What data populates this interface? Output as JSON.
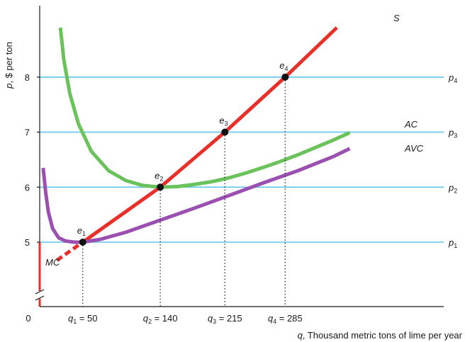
{
  "chart_data": {
    "type": "line",
    "xlabel_var": "q",
    "xlabel_rest": ", Thousand metric tons of lime per year",
    "ylabel_var": "p",
    "ylabel_rest": ", $ per ton",
    "origin_label": "0",
    "xlim": [
      0,
      390
    ],
    "ylim": [
      3.9,
      9.3
    ],
    "y_ticks": [
      5,
      6,
      7,
      8
    ],
    "axis_break": true,
    "price_lines": [
      {
        "y": 5,
        "label": "p",
        "sub": "1"
      },
      {
        "y": 6,
        "label": "p",
        "sub": "2"
      },
      {
        "y": 7,
        "label": "p",
        "sub": "3"
      },
      {
        "y": 8,
        "label": "p",
        "sub": "4"
      }
    ],
    "equilibria": [
      {
        "name": "e",
        "sub": "1",
        "x": 50,
        "y": 5,
        "q_label": "q",
        "q_sub": "1",
        "q_value": " = 50"
      },
      {
        "name": "e",
        "sub": "2",
        "x": 140,
        "y": 6,
        "q_label": "q",
        "q_sub": "2",
        "q_value": " = 140"
      },
      {
        "name": "e",
        "sub": "3",
        "x": 215,
        "y": 7,
        "q_label": "q",
        "q_sub": "3",
        "q_value": " = 215"
      },
      {
        "name": "e",
        "sub": "4",
        "x": 285,
        "y": 8,
        "q_label": "q",
        "q_sub": "4",
        "q_value": " = 285"
      }
    ],
    "series": [
      {
        "name": "S",
        "color": "#e8302a",
        "style": "solid",
        "x": [
          50,
          140,
          215,
          285,
          345
        ],
        "y": [
          5,
          6,
          7,
          8,
          8.9
        ]
      },
      {
        "name": "MC",
        "color": "#e8302a",
        "style": "dashed",
        "x": [
          20,
          50
        ],
        "y": [
          4.67,
          5
        ]
      },
      {
        "name": "AC",
        "color": "#6ac25a",
        "style": "solid",
        "x": [
          24,
          28,
          35,
          45,
          60,
          80,
          100,
          120,
          140,
          160,
          180,
          200,
          220,
          240,
          260,
          280,
          300,
          320,
          340,
          360
        ],
        "y": [
          8.9,
          8.32,
          7.7,
          7.15,
          6.65,
          6.3,
          6.12,
          6.03,
          6.0,
          6.01,
          6.05,
          6.1,
          6.17,
          6.26,
          6.36,
          6.47,
          6.59,
          6.72,
          6.85,
          6.99
        ]
      },
      {
        "name": "AVC",
        "color": "#9b4fb0",
        "style": "solid",
        "x": [
          4,
          5,
          7,
          10,
          15,
          22,
          30,
          40,
          50,
          70,
          100,
          140,
          180,
          220,
          260,
          300,
          340,
          360
        ],
        "y": [
          6.35,
          6.2,
          5.9,
          5.55,
          5.25,
          5.08,
          5.02,
          5.0,
          5.0,
          5.05,
          5.18,
          5.4,
          5.62,
          5.85,
          6.08,
          6.3,
          6.55,
          6.7
        ]
      }
    ],
    "price_line_color": "#5fc6ee"
  }
}
